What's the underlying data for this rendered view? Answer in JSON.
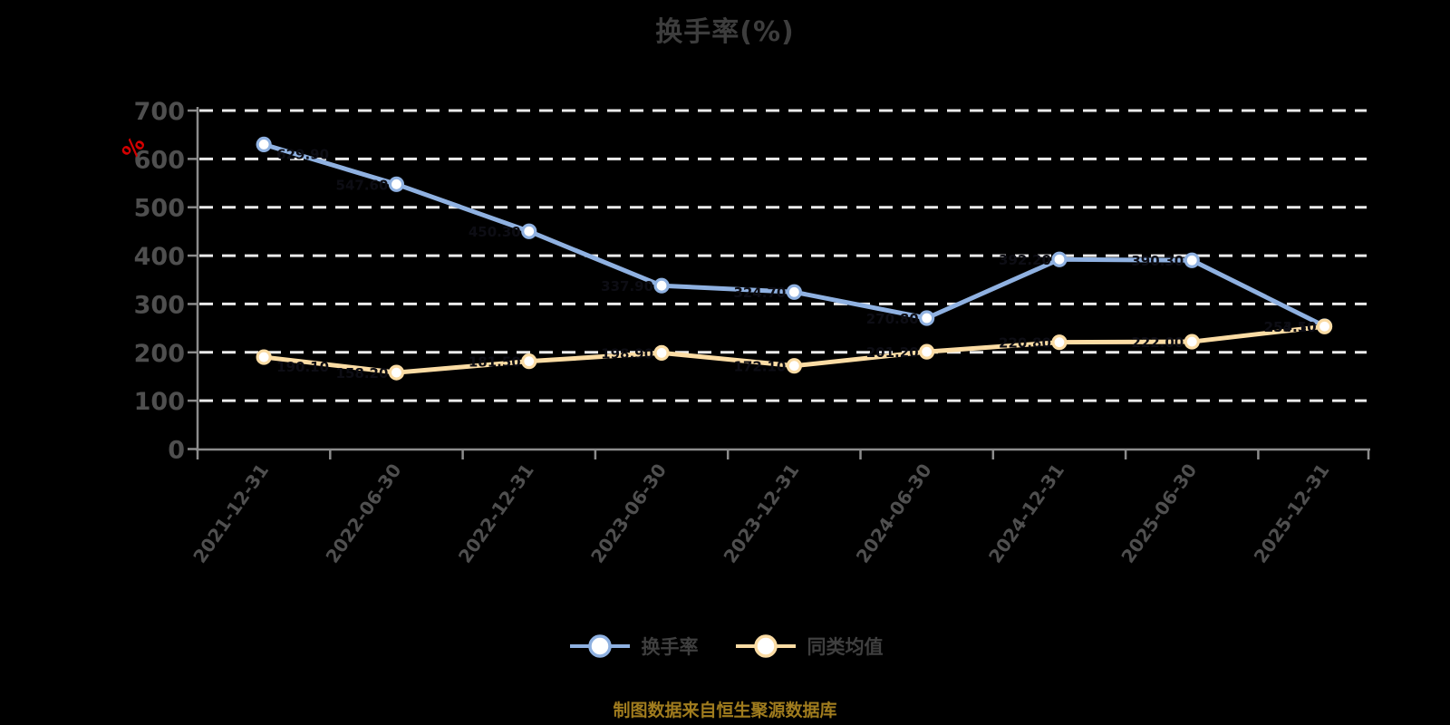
{
  "chart": {
    "title": "换手率(%)",
    "y_unit_label": "%",
    "caption": "制图数据来自恒生聚源数据库",
    "colors": {
      "background": "#000000",
      "title": "#3d3d3d",
      "axis": "#8c8c8c",
      "tick_label": "#4f4f4f",
      "gridline": "#ebebeb",
      "unit": "#d40000",
      "caption": "#a07c1e",
      "legend_text": "#3f3f3f",
      "series_turnover": "#8fb1e1",
      "series_average": "#fbdca4",
      "marker_fill": "#ffffff",
      "data_label": "#0d0d14"
    }
  },
  "legend": {
    "items": [
      {
        "label": "换手率",
        "color": "#8fb1e1"
      },
      {
        "label": "同类均值",
        "color": "#fbdca4"
      }
    ]
  },
  "chart_data": {
    "type": "line",
    "title": "换手率(%)",
    "ylabel": "%",
    "caption": "制图数据来自恒生聚源数据库",
    "categories": [
      "2021-12-31",
      "2022-06-30",
      "2022-12-31",
      "2023-06-30",
      "2023-12-31",
      "2024-06-30",
      "2024-12-31",
      "2025-06-30",
      "2025-12-31"
    ],
    "series": [
      {
        "name": "换手率",
        "color": "#8fb1e1",
        "values": [
          629.9,
          547.6,
          450.3,
          337.9,
          324.7,
          270.8,
          392.2,
          390.3,
          254.1
        ]
      },
      {
        "name": "同类均值",
        "color": "#fbdca4",
        "values": [
          190.1,
          158.2,
          181.5,
          198.9,
          172.1,
          201.2,
          220.8,
          222.0,
          253.5
        ]
      }
    ],
    "ylim": [
      0,
      700
    ],
    "yticks": [
      0,
      100,
      200,
      300,
      400,
      500,
      600,
      700
    ],
    "grid": true,
    "gridline_style": "dashed",
    "legend_position": "bottom",
    "x_label_rotation_deg": -55,
    "markers": "circle-white-fill"
  }
}
